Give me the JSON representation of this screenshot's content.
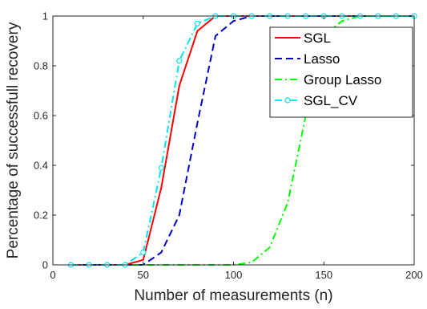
{
  "chart_data": {
    "type": "line",
    "title": "",
    "xlabel": "Number of measurements (n)",
    "ylabel": "Percentage of successfull recovery",
    "xlim": [
      0,
      200
    ],
    "ylim": [
      0,
      1
    ],
    "xticks": [
      0,
      50,
      100,
      150,
      200
    ],
    "yticks": [
      0,
      0.2,
      0.4,
      0.6,
      0.8,
      1
    ],
    "xtick_labels": [
      "0",
      "50",
      "100",
      "150",
      "200"
    ],
    "ytick_labels": [
      "0",
      "0.2",
      "0.4",
      "0.6",
      "0.8",
      "1"
    ],
    "grid": false,
    "legend_position": "top-right",
    "series": [
      {
        "name": "SGL",
        "color": "#ff0000",
        "style": "solid",
        "marker": "none",
        "x": [
          10,
          20,
          30,
          40,
          50,
          60,
          70,
          80,
          90,
          100,
          110,
          120,
          130,
          140,
          150,
          160,
          170,
          180,
          190,
          200
        ],
        "y": [
          0,
          0,
          0,
          0,
          0.02,
          0.31,
          0.72,
          0.94,
          1,
          1,
          1,
          1,
          1,
          1,
          1,
          1,
          1,
          1,
          1,
          1
        ]
      },
      {
        "name": "Lasso",
        "color": "#0000cc",
        "style": "dashed",
        "marker": "none",
        "x": [
          10,
          20,
          30,
          40,
          50,
          60,
          70,
          80,
          90,
          100,
          110,
          120,
          130,
          140,
          150,
          160,
          170,
          180,
          190,
          200
        ],
        "y": [
          0,
          0,
          0,
          0,
          0,
          0.05,
          0.2,
          0.57,
          0.92,
          0.98,
          1,
          1,
          1,
          1,
          1,
          1,
          1,
          1,
          1,
          1
        ]
      },
      {
        "name": "Group Lasso",
        "color": "#00ff00",
        "style": "dashdot",
        "marker": "none",
        "x": [
          10,
          20,
          30,
          40,
          50,
          60,
          70,
          80,
          90,
          100,
          110,
          120,
          130,
          140,
          150,
          160,
          170,
          180,
          190,
          200
        ],
        "y": [
          0,
          0,
          0,
          0,
          0,
          0,
          0,
          0,
          0,
          0,
          0.01,
          0.07,
          0.25,
          0.6,
          0.92,
          0.98,
          1,
          1,
          1,
          1
        ]
      },
      {
        "name": "SGL_CV",
        "color": "#00e5ee",
        "style": "dashdot",
        "marker": "circle",
        "x": [
          10,
          20,
          30,
          40,
          50,
          60,
          70,
          80,
          90,
          100,
          110,
          120,
          130,
          140,
          150,
          160,
          170,
          180,
          190,
          200
        ],
        "y": [
          0,
          0,
          0,
          0,
          0.05,
          0.39,
          0.82,
          0.97,
          1,
          1,
          1,
          1,
          1,
          1,
          1,
          1,
          1,
          1,
          1,
          1
        ]
      }
    ]
  }
}
